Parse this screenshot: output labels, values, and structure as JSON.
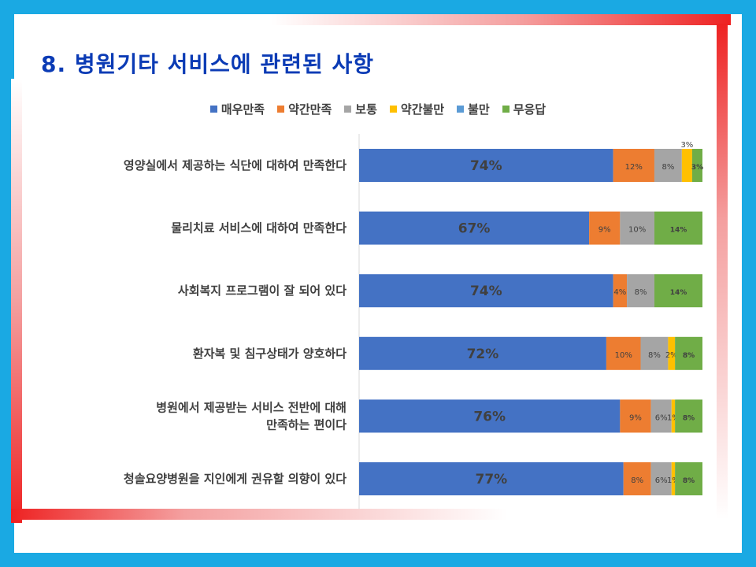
{
  "title": "8. 병원기타 서비스에 관련된 사항",
  "chart_data": {
    "type": "bar",
    "orientation": "horizontal",
    "stacked": "percent",
    "categories": [
      "영양실에서 제공하는 식단에 대하여 만족한다",
      "물리치료 서비스에 대하여 만족한다",
      "사회복지 프로그램이 잘 되어 있다",
      "환자복 및 침구상태가 양호하다",
      "병원에서 제공받는 서비스 전반에 대해 만족하는 편이다",
      "청솔요양병원을 지인에게 권유할 의향이 있다"
    ],
    "category_lines": [
      [
        "영양실에서 제공하는 식단에 대하여 만족한다"
      ],
      [
        "물리치료 서비스에 대하여 만족한다"
      ],
      [
        "사회복지 프로그램이 잘 되어 있다"
      ],
      [
        "환자복 및 침구상태가 양호하다"
      ],
      [
        "병원에서 제공받는 서비스 전반에 대해",
        "만족하는 편이다"
      ],
      [
        "청솔요양병원을 지인에게 권유할 의향이 있다"
      ]
    ],
    "series": [
      {
        "name": "매우만족",
        "color": "#4472c4",
        "values": [
          74,
          67,
          74,
          72,
          76,
          77
        ],
        "labels": [
          "74%",
          "67%",
          "74%",
          "72%",
          "76%",
          "77%"
        ]
      },
      {
        "name": "약간만족",
        "color": "#ed7d31",
        "values": [
          12,
          9,
          4,
          10,
          9,
          8
        ],
        "labels": [
          "12%",
          "9%",
          "4%",
          "10%",
          "9%",
          "8%"
        ]
      },
      {
        "name": "보통",
        "color": "#a5a5a5",
        "values": [
          8,
          10,
          8,
          8,
          6,
          6
        ],
        "labels": [
          "8%",
          "10%",
          "8%",
          "8%",
          "6%",
          "6%"
        ]
      },
      {
        "name": "약간불만",
        "color": "#ffc000",
        "values": [
          3,
          0,
          0,
          2,
          1,
          1
        ],
        "labels": [
          "3%",
          "",
          "",
          "2%",
          "1%",
          "1%"
        ]
      },
      {
        "name": "불만",
        "color": "#5b9bd5",
        "values": [
          0,
          0,
          0,
          0,
          0,
          0
        ],
        "labels": [
          "",
          "",
          "",
          "",
          "",
          ""
        ]
      },
      {
        "name": "무응답",
        "color": "#70ad47",
        "values": [
          3,
          14,
          14,
          8,
          8,
          8
        ],
        "labels": [
          "3%",
          "14%",
          "14%",
          "8%",
          "8%",
          "8%"
        ]
      }
    ],
    "xlim": [
      0,
      100
    ],
    "legend_position": "top"
  }
}
